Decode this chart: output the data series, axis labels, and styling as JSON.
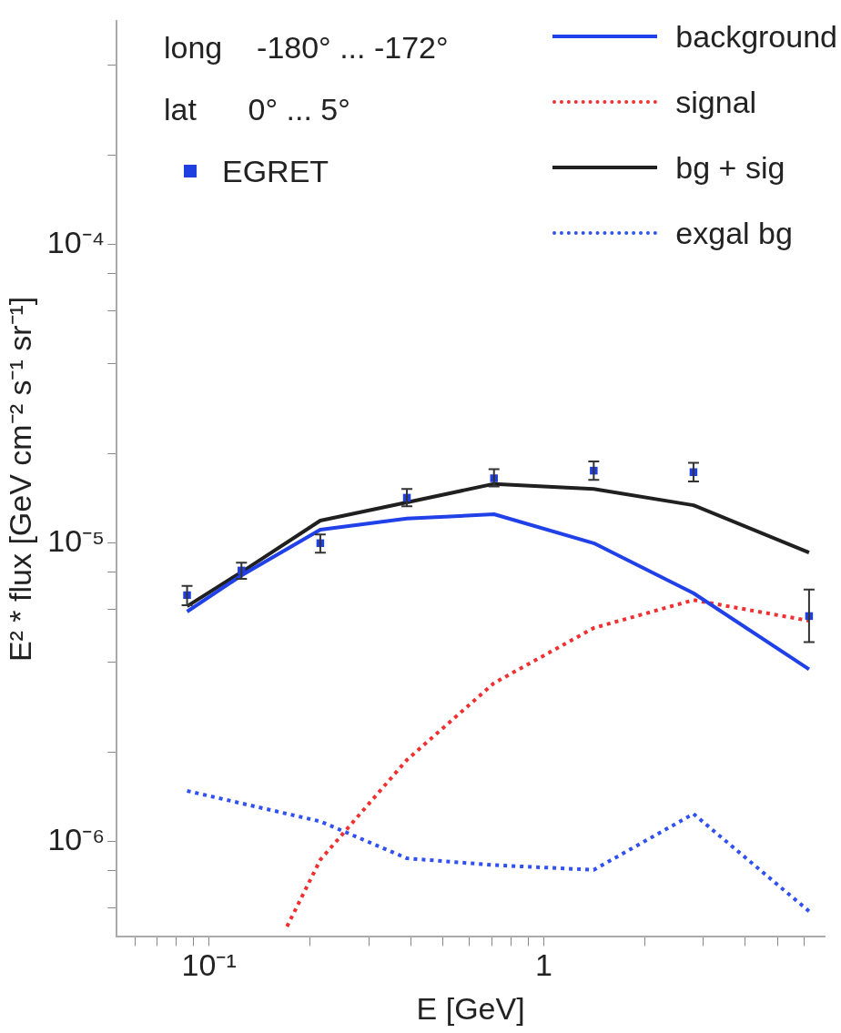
{
  "chart_data": {
    "type": "line",
    "xlabel": "E [GeV]",
    "ylabel": "E² * flux [GeV cm⁻² s⁻¹ sr⁻¹]",
    "annotations": [
      "long    -180° ... -172°",
      "lat      0° ... 5°"
    ],
    "log": "xy",
    "grid": false,
    "legend": "top right",
    "xlim": [
      0.053,
      6.9
    ],
    "ylim": [
      4.8e-07,
      0.00056
    ],
    "xticks": [
      {
        "value": 0.06,
        "label": null
      },
      {
        "value": 0.07,
        "label": null
      },
      {
        "value": 0.08,
        "label": null
      },
      {
        "value": 0.09,
        "label": null
      },
      {
        "value": 0.1,
        "label": "10⁻¹"
      },
      {
        "value": 0.2,
        "label": null
      },
      {
        "value": 0.3,
        "label": null
      },
      {
        "value": 0.4,
        "label": null
      },
      {
        "value": 0.5,
        "label": null
      },
      {
        "value": 0.6,
        "label": null
      },
      {
        "value": 0.7,
        "label": null
      },
      {
        "value": 0.8,
        "label": null
      },
      {
        "value": 0.9,
        "label": null
      },
      {
        "value": 1,
        "label": "1"
      },
      {
        "value": 2,
        "label": null
      },
      {
        "value": 3,
        "label": null
      },
      {
        "value": 4,
        "label": null
      },
      {
        "value": 5,
        "label": null
      },
      {
        "value": 6,
        "label": null
      }
    ],
    "yticks": [
      {
        "value": 6e-07,
        "label": null
      },
      {
        "value": 8e-07,
        "label": null
      },
      {
        "value": 1e-06,
        "label": "10⁻⁶"
      },
      {
        "value": 2e-06,
        "label": null
      },
      {
        "value": 4e-06,
        "label": null
      },
      {
        "value": 6e-06,
        "label": null
      },
      {
        "value": 8e-06,
        "label": null
      },
      {
        "value": 1e-05,
        "label": "10⁻⁵"
      },
      {
        "value": 2e-05,
        "label": null
      },
      {
        "value": 4e-05,
        "label": null
      },
      {
        "value": 6e-05,
        "label": null
      },
      {
        "value": 8e-05,
        "label": null
      },
      {
        "value": 0.0001,
        "label": "10⁻⁴"
      },
      {
        "value": 0.0002,
        "label": null
      },
      {
        "value": 0.0004,
        "label": null
      }
    ],
    "series": [
      {
        "name": "EGRET",
        "type": "scatter",
        "marker": "square",
        "color": "#1f3fe0",
        "x": [
          0.086,
          0.125,
          0.215,
          0.39,
          0.71,
          1.41,
          2.8,
          6.2
        ],
        "values": [
          6.7e-06,
          8.1e-06,
          1e-05,
          1.42e-05,
          1.65e-05,
          1.75e-05,
          1.73e-05,
          5.7e-06
        ],
        "errors": [
          [
            6.2e-06,
            7.2e-06
          ],
          [
            7.6e-06,
            8.6e-06
          ],
          [
            9.3e-06,
            1.07e-05
          ],
          [
            1.33e-05,
            1.52e-05
          ],
          [
            1.55e-05,
            1.77e-05
          ],
          [
            1.63e-05,
            1.88e-05
          ],
          [
            1.61e-05,
            1.86e-05
          ],
          [
            4.66e-06,
            7e-06
          ]
        ]
      },
      {
        "name": "background",
        "type": "line",
        "marker": "none",
        "line_style": "solid",
        "color": "#2040e8",
        "x": [
          0.086,
          0.125,
          0.215,
          0.39,
          0.71,
          1.41,
          2.8,
          6.2
        ],
        "values": [
          5.9e-06,
          7.8e-06,
          1.11e-05,
          1.21e-05,
          1.25e-05,
          1e-05,
          6.8e-06,
          3.78e-06
        ]
      },
      {
        "name": "signal",
        "type": "line",
        "marker": "none",
        "line_style": "dotted",
        "color": "#f03030",
        "x": [
          0.171,
          0.215,
          0.39,
          0.71,
          1.41,
          2.8,
          6.2
        ],
        "values": [
          5.2e-07,
          8.7e-07,
          1.88e-06,
          3.4e-06,
          5.2e-06,
          6.45e-06,
          5.5e-06
        ]
      },
      {
        "name": "bg + sig",
        "type": "line",
        "marker": "none",
        "line_style": "solid",
        "color": "#202020",
        "x": [
          0.086,
          0.125,
          0.215,
          0.39,
          0.71,
          1.41,
          2.8,
          6.2
        ],
        "values": [
          6.15e-06,
          8e-06,
          1.19e-05,
          1.37e-05,
          1.58e-05,
          1.52e-05,
          1.34e-05,
          9.3e-06
        ]
      },
      {
        "name": "exgal bg",
        "type": "line",
        "marker": "none",
        "line_style": "dotted",
        "color": "#3050f0",
        "x": [
          0.086,
          0.215,
          0.39,
          0.71,
          1.41,
          2.8,
          6.2
        ],
        "values": [
          1.48e-06,
          1.17e-06,
          8.8e-07,
          8.35e-07,
          8.05e-07,
          1.24e-06,
          5.85e-07
        ]
      }
    ]
  }
}
